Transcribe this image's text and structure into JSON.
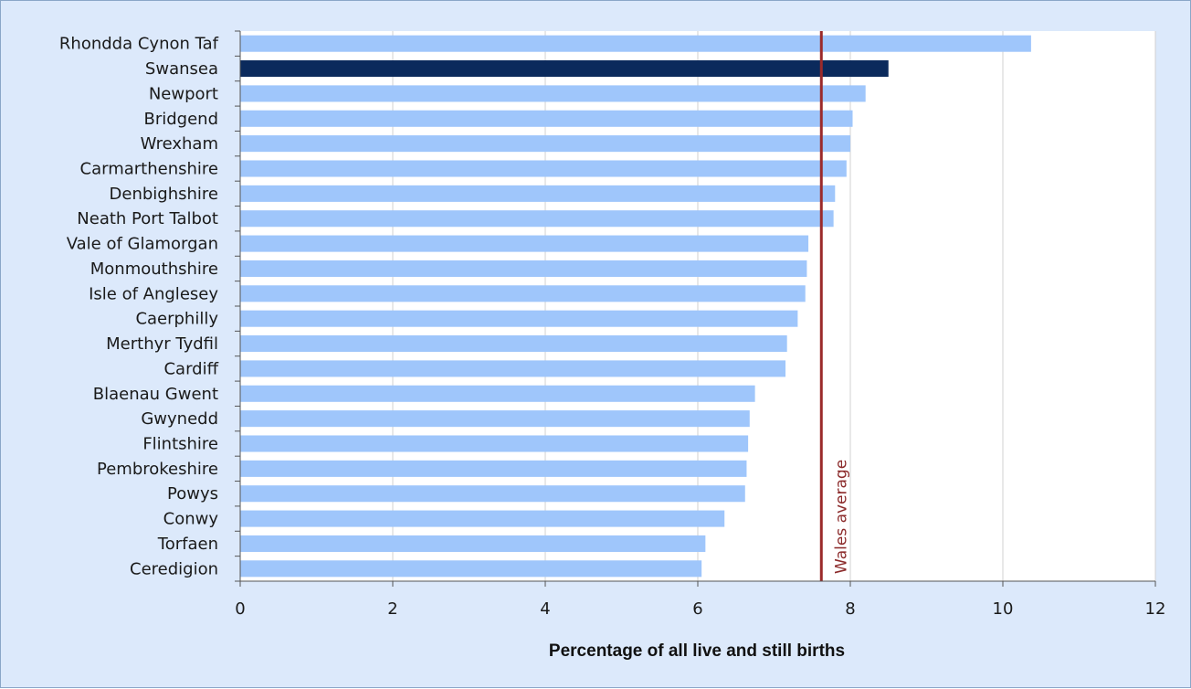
{
  "chart_data": {
    "type": "bar",
    "orientation": "horizontal",
    "title": "",
    "xlabel": "Percentage of all live and still births",
    "ylabel": "",
    "xlim": [
      0,
      12
    ],
    "xticks": [
      0,
      2,
      4,
      6,
      8,
      10,
      12
    ],
    "grid": true,
    "categories": [
      "Rhondda Cynon Taf",
      "Swansea",
      "Newport",
      "Bridgend",
      "Wrexham",
      "Carmarthenshire",
      "Denbighshire",
      "Neath Port Talbot",
      "Vale of Glamorgan",
      "Monmouthshire",
      "Isle of Anglesey",
      "Caerphilly",
      "Merthyr Tydfil",
      "Cardiff",
      "Blaenau Gwent",
      "Gwynedd",
      "Flintshire",
      "Pembrokeshire",
      "Powys",
      "Conwy",
      "Torfaen",
      "Ceredigion"
    ],
    "values": [
      10.37,
      8.5,
      8.2,
      8.03,
      8.0,
      7.95,
      7.8,
      7.78,
      7.45,
      7.43,
      7.41,
      7.31,
      7.17,
      7.15,
      6.75,
      6.68,
      6.66,
      6.64,
      6.62,
      6.35,
      6.1,
      6.05
    ],
    "highlight": "Swansea",
    "colors": {
      "bar": "#9fc6fb",
      "highlight_bar": "#0b2a5c",
      "reference_line": "#9b2a2a",
      "gridline": "#d0d0d0",
      "axis": "#555555",
      "frame_background": "#dce9fb",
      "plot_background": "#ffffff"
    },
    "reference_line": {
      "label": "Wales average",
      "value": 7.62
    }
  }
}
